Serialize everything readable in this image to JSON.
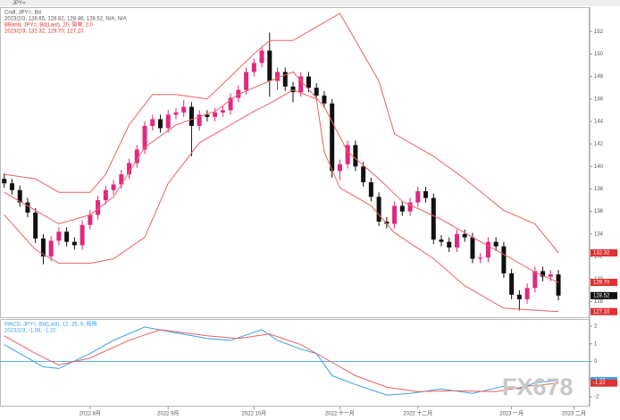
{
  "toolbar": "JPY=",
  "watermark": "FX678",
  "chart_data": [
    {
      "type": "candlestick",
      "title": "Cndl, JPY=, Bd",
      "subtitle": "2023/2/3, 128.65, 128.82, 128.46, 128.52, N/A, N/A",
      "overlay_title": "BBand, JPY=, Bd(Last), 20, 简单, 2.0",
      "overlay_subtitle": "2023/2/3, 132.32, 129.70, 127.10",
      "up_color": "#e0287f",
      "down_color": "#111111",
      "candles": [
        [
          138.9,
          139.4,
          138.1,
          138.5
        ],
        [
          138.5,
          138.9,
          137.5,
          137.9
        ],
        [
          137.9,
          138.3,
          136.4,
          136.8
        ],
        [
          136.8,
          137.2,
          135.5,
          135.9
        ],
        [
          135.9,
          136.3,
          133.2,
          133.6
        ],
        [
          133.6,
          134.0,
          131.3,
          132.0
        ],
        [
          132.0,
          133.8,
          131.6,
          133.4
        ],
        [
          133.4,
          134.6,
          133.0,
          134.2
        ],
        [
          134.2,
          134.6,
          132.9,
          133.3
        ],
        [
          133.3,
          133.7,
          132.6,
          133.0
        ],
        [
          133.0,
          135.2,
          132.6,
          134.8
        ],
        [
          134.8,
          136.1,
          134.4,
          135.7
        ],
        [
          135.7,
          137.4,
          135.3,
          137.0
        ],
        [
          137.0,
          138.3,
          136.6,
          137.9
        ],
        [
          137.9,
          138.8,
          137.5,
          138.4
        ],
        [
          138.4,
          139.7,
          138.0,
          139.3
        ],
        [
          139.3,
          140.7,
          138.9,
          140.3
        ],
        [
          140.3,
          141.9,
          139.9,
          141.5
        ],
        [
          141.5,
          144.0,
          141.1,
          143.6
        ],
        [
          143.6,
          144.6,
          143.2,
          144.2
        ],
        [
          144.2,
          144.6,
          143.0,
          143.4
        ],
        [
          143.4,
          145.0,
          143.0,
          144.6
        ],
        [
          144.6,
          145.2,
          144.2,
          144.8
        ],
        [
          144.8,
          145.9,
          144.4,
          145.3
        ],
        [
          145.3,
          145.7,
          140.9,
          143.6
        ],
        [
          143.6,
          145.0,
          143.2,
          144.6
        ],
        [
          144.6,
          145.0,
          144.0,
          144.4
        ],
        [
          144.4,
          145.2,
          144.0,
          144.8
        ],
        [
          144.8,
          145.4,
          144.4,
          145.0
        ],
        [
          145.0,
          146.5,
          144.6,
          146.1
        ],
        [
          146.1,
          147.2,
          145.7,
          146.8
        ],
        [
          146.8,
          148.8,
          146.4,
          148.4
        ],
        [
          148.4,
          149.6,
          148.0,
          149.2
        ],
        [
          149.2,
          150.7,
          148.8,
          150.3
        ],
        [
          150.3,
          151.9,
          146.2,
          147.6
        ],
        [
          147.6,
          148.8,
          146.8,
          148.4
        ],
        [
          148.4,
          148.8,
          146.7,
          147.1
        ],
        [
          147.1,
          147.5,
          145.7,
          146.6
        ],
        [
          146.6,
          148.4,
          146.2,
          148.0
        ],
        [
          148.0,
          148.4,
          146.6,
          147.0
        ],
        [
          147.0,
          147.4,
          145.9,
          146.3
        ],
        [
          146.3,
          146.7,
          145.2,
          145.6
        ],
        [
          145.6,
          146.0,
          139.0,
          139.6
        ],
        [
          139.6,
          140.6,
          138.8,
          140.2
        ],
        [
          140.2,
          142.3,
          139.8,
          141.9
        ],
        [
          141.9,
          142.3,
          139.6,
          140.0
        ],
        [
          140.0,
          140.4,
          138.2,
          138.6
        ],
        [
          138.6,
          139.0,
          136.9,
          137.3
        ],
        [
          137.3,
          137.7,
          134.7,
          135.1
        ],
        [
          135.1,
          135.5,
          134.5,
          134.9
        ],
        [
          134.9,
          136.9,
          134.5,
          136.5
        ],
        [
          136.5,
          136.9,
          135.6,
          136.0
        ],
        [
          136.0,
          137.2,
          135.6,
          136.8
        ],
        [
          136.8,
          138.2,
          136.4,
          137.8
        ],
        [
          137.8,
          138.2,
          136.8,
          137.2
        ],
        [
          137.2,
          137.6,
          133.1,
          133.5
        ],
        [
          133.5,
          133.9,
          132.9,
          133.3
        ],
        [
          133.3,
          133.7,
          132.4,
          132.8
        ],
        [
          132.8,
          134.4,
          132.4,
          134.0
        ],
        [
          134.0,
          134.4,
          133.3,
          133.7
        ],
        [
          133.7,
          134.1,
          131.4,
          131.8
        ],
        [
          131.8,
          132.3,
          131.4,
          131.9
        ],
        [
          131.9,
          133.7,
          131.5,
          133.3
        ],
        [
          133.3,
          133.7,
          132.5,
          132.9
        ],
        [
          132.9,
          133.3,
          130.1,
          130.5
        ],
        [
          130.5,
          130.9,
          128.2,
          128.6
        ],
        [
          128.6,
          129.0,
          127.2,
          128.2
        ],
        [
          128.2,
          129.6,
          127.8,
          129.2
        ],
        [
          129.2,
          131.1,
          128.8,
          130.7
        ],
        [
          130.7,
          131.1,
          129.8,
          130.2
        ],
        [
          130.2,
          130.8,
          129.8,
          130.4
        ],
        [
          130.4,
          130.8,
          128.1,
          128.52
        ]
      ],
      "series": [
        {
          "color": "#f06060",
          "x": [
            0,
            4,
            7,
            11,
            13,
            16,
            19,
            22,
            26,
            29,
            32,
            34,
            37,
            41,
            43,
            45,
            48,
            50,
            55,
            59,
            64,
            68,
            71
          ],
          "values": [
            139.3,
            138.9,
            137.7,
            137.7,
            139.3,
            143.7,
            146.4,
            146.4,
            146.0,
            148.0,
            150.0,
            151.2,
            151.2,
            152.8,
            153.6,
            151.2,
            147.6,
            142.9,
            140.9,
            138.9,
            136.1,
            134.9,
            132.32
          ]
        },
        {
          "color": "#f06060",
          "x": [
            0,
            4,
            7,
            11,
            14,
            18,
            22,
            27,
            30,
            34,
            37,
            41,
            44,
            48,
            51,
            56,
            60,
            65,
            68,
            71
          ],
          "values": [
            137.7,
            136.1,
            134.9,
            135.7,
            137.3,
            141.7,
            143.7,
            144.9,
            146.4,
            147.6,
            148.4,
            145.3,
            141.3,
            138.9,
            136.9,
            135.3,
            133.7,
            131.8,
            130.6,
            129.7
          ]
        },
        {
          "color": "#f06060",
          "x": [
            0,
            4,
            7,
            11,
            14,
            18,
            21,
            25,
            28,
            32,
            34,
            37,
            40,
            41,
            43,
            47,
            50,
            55,
            59,
            64,
            71
          ],
          "values": [
            135.7,
            132.6,
            131.4,
            131.4,
            131.8,
            133.7,
            138.5,
            142.1,
            143.3,
            144.9,
            145.6,
            146.8,
            146.0,
            141.3,
            138.1,
            136.5,
            134.1,
            131.8,
            129.4,
            127.4,
            127.1
          ]
        }
      ],
      "last_labels": [
        {
          "value": 132.32,
          "color": "#e03030"
        },
        {
          "value": {
            "value": 129.7,
            "label": "129.70"
          },
          "color": "#e03030"
        },
        {
          "value": 128.52,
          "color": "#111111"
        },
        {
          "value": {
            "value": 127.1,
            "label": "127.10"
          },
          "color": "#e03030"
        }
      ],
      "ylim": [
        126.6,
        154
      ],
      "yticks": [
        128,
        130,
        132,
        134,
        136,
        138,
        140,
        142,
        144,
        146,
        148,
        150,
        152
      ],
      "xlim": [
        -0.2,
        75
      ],
      "xticks": [
        {
          "value": 11,
          "label": "2022 8月"
        },
        {
          "value": 21,
          "label": "2022 9月"
        },
        {
          "value": 32,
          "label": "2022 10月"
        },
        {
          "value": 43,
          "label": "2022 十一月"
        },
        {
          "value": 53,
          "label": "2022 十二月"
        },
        {
          "value": 65,
          "label": "2023 一月"
        },
        {
          "value": 73,
          "label": "2023 二月"
        }
      ]
    },
    {
      "type": "line",
      "title": "MACD, JPY=, Bd(Last), 12, 26, 9, 価格",
      "subtitle": "2023/2/3, -1.08, -1.22",
      "series": [
        {
          "color": "#3aa0e8",
          "x": [
            0,
            3,
            5,
            7,
            11,
            14,
            18,
            21,
            26,
            29,
            33,
            35,
            38,
            40,
            42,
            45,
            49,
            52,
            56,
            60,
            64,
            66,
            68,
            71
          ],
          "values": [
            0.95,
            0.2,
            -0.3,
            -0.4,
            0.45,
            1.2,
            1.95,
            1.7,
            1.3,
            1.2,
            1.8,
            1.2,
            0.7,
            0.45,
            -0.8,
            -1.3,
            -1.9,
            -1.8,
            -1.55,
            -1.8,
            -1.4,
            -1.55,
            -1.2,
            -1.08
          ]
        },
        {
          "color": "#f06060",
          "x": [
            0,
            4,
            7,
            11,
            16,
            20,
            26,
            30,
            34,
            38,
            42,
            45,
            49,
            53,
            58,
            63,
            67,
            71
          ],
          "values": [
            1.45,
            0.45,
            -0.2,
            0.2,
            1.2,
            1.8,
            1.45,
            1.3,
            1.55,
            0.95,
            -0.05,
            -0.8,
            -1.45,
            -1.7,
            -1.65,
            -1.7,
            -1.4,
            -1.22
          ]
        }
      ],
      "last_labels": [
        {
          "value": -1.08,
          "color": "#3aa0e8"
        },
        {
          "value": -1.22,
          "color": "#e03030"
        }
      ],
      "ylim": [
        -2.55,
        2.35
      ],
      "yticks": [
        -2,
        -1,
        0,
        1,
        2
      ],
      "zero_color": "#5ab0e0"
    }
  ]
}
